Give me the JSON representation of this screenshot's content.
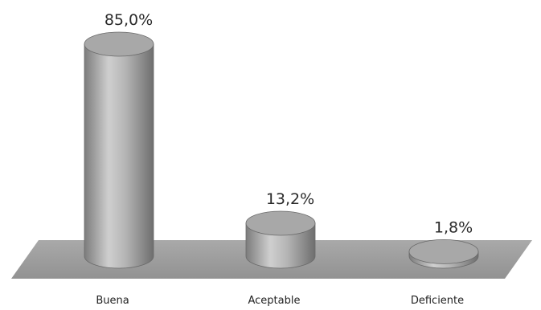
{
  "chart_data": {
    "type": "bar",
    "style": "3d-cylinder",
    "categories": [
      "Buena",
      "Aceptable",
      "Deficiente"
    ],
    "values": [
      85.0,
      13.2,
      1.8
    ],
    "value_labels": [
      "85,0%",
      "13,2%",
      "1,8%"
    ],
    "title": "",
    "xlabel": "",
    "ylabel": "",
    "ylim": [
      0,
      85
    ],
    "grid": false,
    "legend": "none",
    "colors": {
      "bar_fill": "#9a9a9a",
      "bar_highlight": "#d6d6d6",
      "bar_dark": "#6f6f6f",
      "floor": "#9c9c9c"
    }
  }
}
